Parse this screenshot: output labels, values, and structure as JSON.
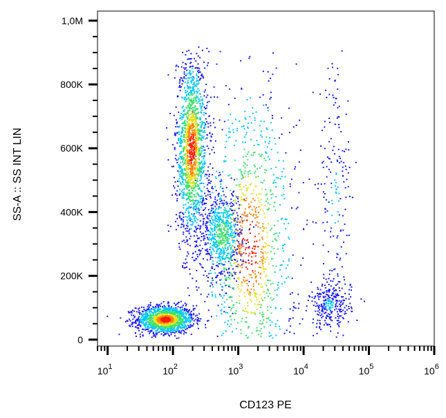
{
  "chart_data": {
    "type": "scatter",
    "subtype": "flow-cytometry-density-dot-plot",
    "title": "",
    "xlabel": "CD123 PE",
    "ylabel": "SS-A :: SS INT LIN",
    "x_scale": "log",
    "y_scale": "linear",
    "xlim": [
      7,
      1000000
    ],
    "ylim": [
      -20000,
      1030000
    ],
    "x_ticks": [
      {
        "value": 10,
        "base": "10",
        "exp": "1"
      },
      {
        "value": 100,
        "base": "10",
        "exp": "2"
      },
      {
        "value": 1000,
        "base": "10",
        "exp": "3"
      },
      {
        "value": 10000,
        "base": "10",
        "exp": "4"
      },
      {
        "value": 100000,
        "base": "10",
        "exp": "5"
      },
      {
        "value": 1000000,
        "base": "10",
        "exp": "6"
      }
    ],
    "y_ticks": [
      {
        "value": 0,
        "label": "0"
      },
      {
        "value": 200000,
        "label": "200K"
      },
      {
        "value": 400000,
        "label": "400K"
      },
      {
        "value": 600000,
        "label": "600K"
      },
      {
        "value": 800000,
        "label": "800K"
      },
      {
        "value": 1000000,
        "label": "1,0M"
      }
    ],
    "grid": false,
    "legend": "none",
    "density_colors": [
      "#1a1aff",
      "#00c8ff",
      "#3ce06a",
      "#e8e020",
      "#ff8000",
      "#ff1a00"
    ],
    "populations": [
      {
        "x_center": 75,
        "y_center": 65000,
        "x_log_spread": 0.22,
        "y_spread": 22000,
        "approx_points": 1400
      },
      {
        "x_center": 190,
        "y_center": 600000,
        "x_log_spread": 0.12,
        "y_spread": 140000,
        "approx_points": 1600
      },
      {
        "x_center": 550,
        "y_center": 330000,
        "x_log_spread": 0.16,
        "y_spread": 70000,
        "approx_points": 700
      },
      {
        "x_center": 25000,
        "y_center": 110000,
        "x_log_spread": 0.16,
        "y_spread": 35000,
        "approx_points": 280
      },
      {
        "x_center": 30000,
        "y_center": 450000,
        "x_log_spread": 0.13,
        "y_spread": 220000,
        "approx_points": 180
      },
      {
        "x_center": 1500,
        "y_center": 300000,
        "x_log_spread": 0.35,
        "y_spread": 260000,
        "approx_points": 1100
      }
    ]
  }
}
